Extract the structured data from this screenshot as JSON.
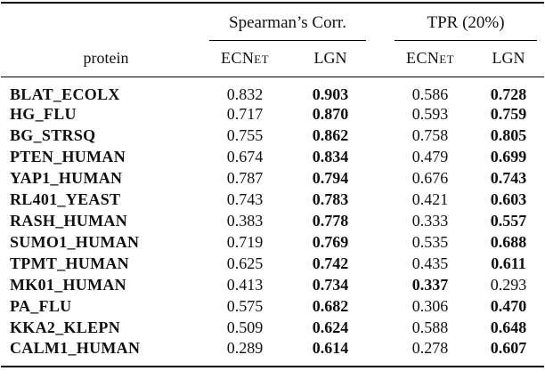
{
  "table": {
    "groups": [
      {
        "label": "Spearman’s Corr."
      },
      {
        "label": "TPR (20%)"
      }
    ],
    "protein_header": "protein",
    "sub_headers": [
      "ECNet",
      "LGN",
      "ECNet",
      "LGN"
    ],
    "rows": [
      {
        "protein": "BLAT_ECOLX",
        "values": [
          "0.832",
          "0.903",
          "0.586",
          "0.728"
        ],
        "bold": [
          false,
          true,
          false,
          true
        ]
      },
      {
        "protein": "HG_FLU",
        "values": [
          "0.717",
          "0.870",
          "0.593",
          "0.759"
        ],
        "bold": [
          false,
          true,
          false,
          true
        ]
      },
      {
        "protein": "BG_STRSQ",
        "values": [
          "0.755",
          "0.862",
          "0.758",
          "0.805"
        ],
        "bold": [
          false,
          true,
          false,
          true
        ]
      },
      {
        "protein": "PTEN_HUMAN",
        "values": [
          "0.674",
          "0.834",
          "0.479",
          "0.699"
        ],
        "bold": [
          false,
          true,
          false,
          true
        ]
      },
      {
        "protein": "YAP1_HUMAN",
        "values": [
          "0.787",
          "0.794",
          "0.676",
          "0.743"
        ],
        "bold": [
          false,
          true,
          false,
          true
        ]
      },
      {
        "protein": "RL401_YEAST",
        "values": [
          "0.743",
          "0.783",
          "0.421",
          "0.603"
        ],
        "bold": [
          false,
          true,
          false,
          true
        ]
      },
      {
        "protein": "RASH_HUMAN",
        "values": [
          "0.383",
          "0.778",
          "0.333",
          "0.557"
        ],
        "bold": [
          false,
          true,
          false,
          true
        ]
      },
      {
        "protein": "SUMO1_HUMAN",
        "values": [
          "0.719",
          "0.769",
          "0.535",
          "0.688"
        ],
        "bold": [
          false,
          true,
          false,
          true
        ]
      },
      {
        "protein": "TPMT_HUMAN",
        "values": [
          "0.625",
          "0.742",
          "0.435",
          "0.611"
        ],
        "bold": [
          false,
          true,
          false,
          true
        ]
      },
      {
        "protein": "MK01_HUMAN",
        "values": [
          "0.413",
          "0.734",
          "0.337",
          "0.293"
        ],
        "bold": [
          false,
          true,
          true,
          false
        ]
      },
      {
        "protein": "PA_FLU",
        "values": [
          "0.575",
          "0.682",
          "0.306",
          "0.470"
        ],
        "bold": [
          false,
          true,
          false,
          true
        ]
      },
      {
        "protein": "KKA2_KLEPN",
        "values": [
          "0.509",
          "0.624",
          "0.588",
          "0.648"
        ],
        "bold": [
          false,
          true,
          false,
          true
        ]
      },
      {
        "protein": "CALM1_HUMAN",
        "values": [
          "0.289",
          "0.614",
          "0.278",
          "0.607"
        ],
        "bold": [
          false,
          true,
          false,
          true
        ]
      }
    ]
  }
}
